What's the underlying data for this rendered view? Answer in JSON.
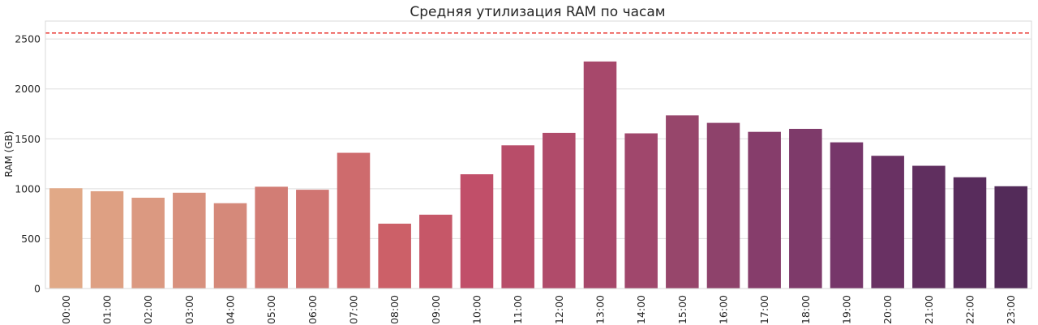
{
  "chart_data": {
    "type": "bar",
    "title": "Средняя утилизация RAM по часам",
    "xlabel": "",
    "ylabel": "RAM (GB)",
    "ylim": [
      0,
      2680
    ],
    "yticks": [
      0,
      500,
      1000,
      1500,
      2000,
      2500
    ],
    "grid": true,
    "categories": [
      "00:00",
      "01:00",
      "02:00",
      "03:00",
      "04:00",
      "05:00",
      "06:00",
      "07:00",
      "08:00",
      "09:00",
      "10:00",
      "11:00",
      "12:00",
      "13:00",
      "14:00",
      "15:00",
      "16:00",
      "17:00",
      "18:00",
      "19:00",
      "20:00",
      "21:00",
      "22:00",
      "23:00"
    ],
    "values": [
      1005,
      975,
      910,
      960,
      855,
      1020,
      990,
      1360,
      650,
      740,
      1145,
      1435,
      1560,
      2275,
      1555,
      1735,
      1660,
      1570,
      1600,
      1465,
      1330,
      1230,
      1115,
      1025
    ],
    "reference_line": {
      "value": 2560,
      "style": "dashed",
      "color": "#e8302b"
    },
    "colors": [
      "#e1a987",
      "#dea083",
      "#db9981",
      "#d8917e",
      "#d5897a",
      "#d27d75",
      "#d07572",
      "#ce6b6d",
      "#cc6068",
      "#c65768",
      "#c14f69",
      "#b84d69",
      "#b04b6a",
      "#a7486b",
      "#a0476c",
      "#97466b",
      "#8e426b",
      "#863d6b",
      "#7e3a6a",
      "#76366a",
      "#693163",
      "#602f5f",
      "#582c5c",
      "#532b59"
    ]
  }
}
